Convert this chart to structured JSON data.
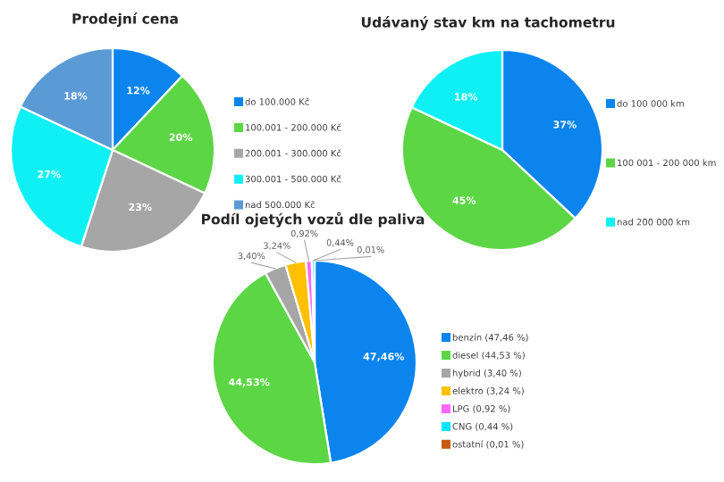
{
  "chart_data": [
    {
      "type": "pie",
      "title": "Prodejní cena",
      "categories": [
        "do 100.000 Kč",
        "100.001 - 200.000 Kč",
        "200.001 - 300.000 Kč",
        "300.001 - 500.000 Kč",
        "nad 500.000 Kč"
      ],
      "values": [
        12,
        20,
        23,
        27,
        18
      ],
      "value_labels": [
        "12%",
        "20%",
        "23%",
        "27%",
        "18%"
      ],
      "colors": [
        "#0b84ee",
        "#5cd645",
        "#a6a6a6",
        "#0ff0f5",
        "#5b9bd5"
      ],
      "legend": "right"
    },
    {
      "type": "pie",
      "title": "Udávaný stav km na tachometru",
      "categories": [
        "do 100 000 km",
        "100 001 - 200 000 km",
        "nad 200 000 km"
      ],
      "values": [
        37,
        45,
        18
      ],
      "value_labels": [
        "37%",
        "45%",
        "18%"
      ],
      "colors": [
        "#0b84ee",
        "#5cd645",
        "#0ff0f5"
      ],
      "legend": "right"
    },
    {
      "type": "pie",
      "title": "Podíl ojetých vozů dle paliva",
      "categories": [
        "benzín (47,46 %)",
        "diesel (44,53 %)",
        "hybrid (3,40 %)",
        "elektro (3,24 %)",
        "LPG (0,92 %)",
        "CNG (0,44 %)",
        "ostatní (0,01 %)"
      ],
      "values": [
        47.46,
        44.53,
        3.4,
        3.24,
        0.92,
        0.44,
        0.01
      ],
      "value_labels": [
        "47,46%",
        "44,53%",
        "3,40%",
        "3,24%",
        "0,92%",
        "0,44%",
        "0,01%"
      ],
      "colors": [
        "#0b84ee",
        "#5cd645",
        "#a6a6a6",
        "#ffc000",
        "#ff66ff",
        "#00e5ff",
        "#c55a11"
      ],
      "legend": "right"
    }
  ]
}
